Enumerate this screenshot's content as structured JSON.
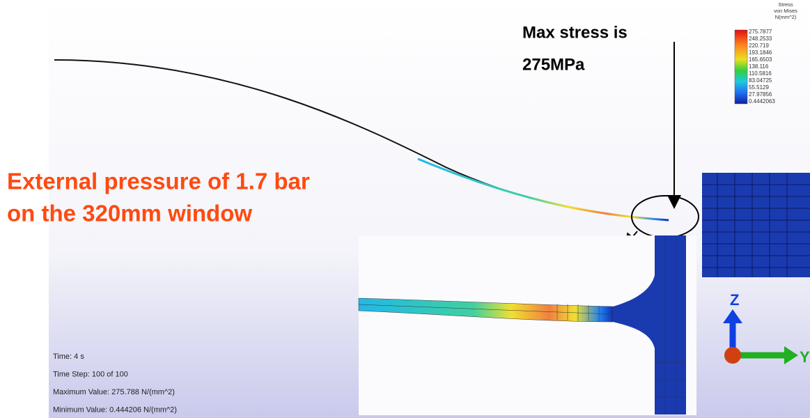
{
  "annotations": {
    "max_stress": [
      "Max stress is",
      "275MPa"
    ],
    "pressure": [
      "External pressure of 1.7 bar",
      "on the 320mm window"
    ]
  },
  "legend": {
    "title": [
      "Stress",
      "von Mises",
      "N(mm^2)"
    ],
    "values": [
      "275.7877",
      "248.2533",
      "220.719",
      "193.1846",
      "165.6503",
      "138.116",
      "110.5816",
      "83.04725",
      "55.5129",
      "27.97856",
      "0.4442063"
    ]
  },
  "info": [
    "Time: 4 s",
    "Time Step:  100 of 100",
    "Maximum Value: 275.788 N/(mm^2)",
    "Minimum Value: 0.444206 N/(mm^2)"
  ],
  "axes": {
    "z": "Z",
    "y": "Y"
  }
}
